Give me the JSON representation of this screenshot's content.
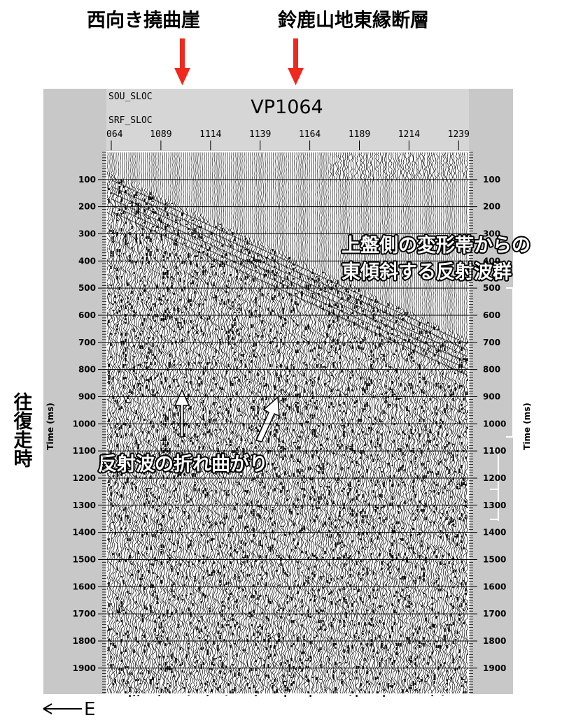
{
  "annotations": {
    "west_flexure": "西向き撓曲崖",
    "fault": "鈴鹿山地東縁断層",
    "reflectors": [
      "上盤側の変形帯からの",
      "東傾斜する反射波群"
    ],
    "bend": "反射波の折れ曲がり",
    "twt": "往復走時",
    "direction": "E"
  },
  "header": {
    "sou": "SOU_SLOC",
    "srf": "SRF_SLOC",
    "title": "VP1064"
  },
  "x_axis": {
    "ticks": [
      "064",
      "1089",
      "1114",
      "1139",
      "1164",
      "1189",
      "1214",
      "1239"
    ]
  },
  "y_axis": {
    "label": "Time (ms)",
    "ticks": [
      100,
      200,
      300,
      400,
      500,
      600,
      700,
      800,
      900,
      1000,
      1100,
      1200,
      1300,
      1400,
      1500,
      1600,
      1700,
      1800,
      1900
    ]
  }
}
